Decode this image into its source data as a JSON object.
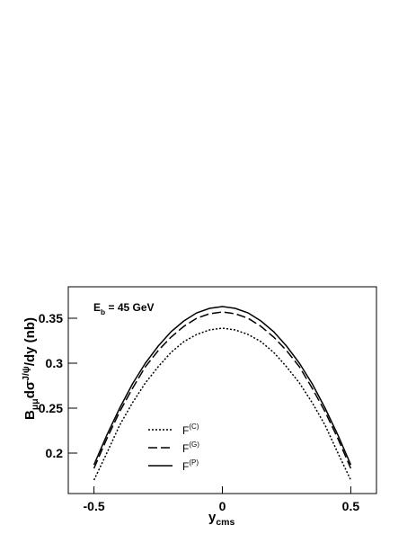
{
  "chart_data": {
    "type": "line",
    "xlabel": [
      "y",
      "cms"
    ],
    "ylabel": [
      "B",
      "μμ",
      "dσ",
      "J/ψ",
      "/dy (nb)"
    ],
    "annotation": [
      "E",
      "b",
      " = 45 GeV"
    ],
    "x": [
      -0.5,
      -0.45,
      -0.4,
      -0.35,
      -0.3,
      -0.25,
      -0.2,
      -0.15,
      -0.1,
      -0.05,
      0,
      0.05,
      0.1,
      0.15,
      0.2,
      0.25,
      0.3,
      0.35,
      0.4,
      0.45,
      0.5
    ],
    "series": [
      {
        "name": "F",
        "name_sup": "(C)",
        "color": "#000000",
        "dash": "dotted",
        "values": [
          0.17,
          0.2,
          0.231,
          0.256,
          0.278,
          0.296,
          0.312,
          0.324,
          0.332,
          0.337,
          0.339,
          0.337,
          0.332,
          0.324,
          0.312,
          0.296,
          0.278,
          0.256,
          0.231,
          0.2,
          0.17
        ]
      },
      {
        "name": "F",
        "name_sup": "(G)",
        "color": "#000000",
        "dash": "long",
        "values": [
          0.183,
          0.216,
          0.246,
          0.272,
          0.296,
          0.314,
          0.329,
          0.341,
          0.35,
          0.355,
          0.357,
          0.355,
          0.35,
          0.341,
          0.329,
          0.314,
          0.296,
          0.272,
          0.246,
          0.216,
          0.183
        ]
      },
      {
        "name": "F",
        "name_sup": "(P)",
        "color": "#000000",
        "dash": "solid",
        "values": [
          0.187,
          0.22,
          0.25,
          0.277,
          0.3,
          0.319,
          0.335,
          0.347,
          0.356,
          0.361,
          0.363,
          0.361,
          0.356,
          0.347,
          0.335,
          0.319,
          0.3,
          0.277,
          0.25,
          0.22,
          0.187
        ]
      }
    ],
    "xlim": [
      -0.6,
      0.6
    ],
    "xticks": [
      -0.5,
      0,
      0.5
    ],
    "ylim": [
      0.155,
      0.385
    ],
    "yticks": [
      0.2,
      0.25,
      0.3,
      0.35
    ]
  }
}
